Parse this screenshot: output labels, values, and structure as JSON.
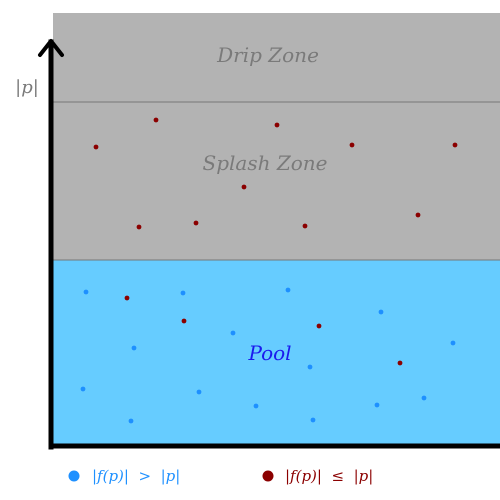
{
  "colors": {
    "splash_zone_fill": "#b3b3b3",
    "pool_fill": "#66ccff",
    "zone_text": "#7a7a7a",
    "pool_text": "#1a1aee",
    "axis": "#000000",
    "divider": "#777777",
    "point_blue": "#1e90ff",
    "point_red": "#8b0000"
  },
  "axis": {
    "y_label": "|p|"
  },
  "zones": {
    "drip_label": "Drip Zone",
    "splash_label": "Splash Zone",
    "pool_label": "Pool"
  },
  "legend": {
    "blue_label": "|f(p)|  >  |p|",
    "red_label": "|f(p)|  ≤  |p|"
  }
}
